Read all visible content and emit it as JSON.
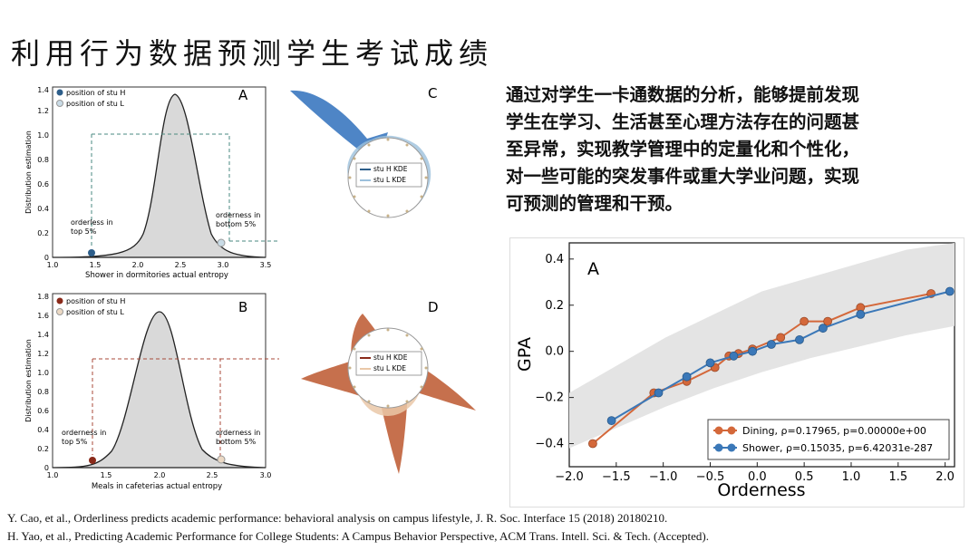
{
  "title": "利用行为数据预测学生考试成绩",
  "body_lines": [
    "通过对学生一卡通数据的分析，能够提前发现",
    "学生在学习、生活甚至心理方法存在的问题甚",
    "至异常，实现教学管理中的定量化和个性化，",
    "对一些可能的突发事件或重大学业问题，实现",
    "可预测的管理和干预。"
  ],
  "references": [
    "Y. Cao, et al., Orderliness predicts academic performance: behavioral analysis on campus lifestyle, J. R. Soc. Interface 15 (2018) 20180210.",
    "H. Yao, et al.,  Predicting Academic Performance for College Students: A Campus Behavior Perspective, ACM Trans. Intell. Sci. &  Tech. (Accepted)."
  ],
  "panel_a": {
    "letter": "A",
    "ylabel": "Distribution estimation",
    "xlabel": "Shower in dormitories actual entropy",
    "legend": [
      "position of stu H",
      "position of stu L"
    ],
    "annot_left": [
      "orderless in",
      "top 5%"
    ],
    "annot_right": [
      "orderness in",
      "bottom 5%"
    ],
    "xticks": [
      "1.0",
      "1.5",
      "2.0",
      "2.5",
      "3.0",
      "3.5"
    ],
    "yticks": [
      "0",
      "0.2",
      "0.4",
      "0.6",
      "0.8",
      "1.0",
      "1.2",
      "1.4"
    ]
  },
  "panel_b": {
    "letter": "B",
    "ylabel": "Distribution estimation",
    "xlabel": "Meals in cafeterias actual entropy",
    "legend": [
      "position of stu H",
      "position of stu L"
    ],
    "annot_left": [
      "orderness in",
      "top 5%"
    ],
    "annot_right": [
      "orderness in",
      "bottom 5%"
    ],
    "xticks": [
      "1.0",
      "1.5",
      "2.0",
      "2.5",
      "3.0"
    ],
    "yticks": [
      "0",
      "0.2",
      "0.4",
      "0.6",
      "0.8",
      "1.0",
      "1.2",
      "1.4",
      "1.6",
      "1.8"
    ]
  },
  "panel_c": {
    "letter": "C",
    "legend": [
      "stu H KDE",
      "stu L KDE"
    ]
  },
  "panel_d": {
    "letter": "D",
    "legend": [
      "stu H KDE",
      "stu L KDE"
    ]
  },
  "colors": {
    "dining": "#d4683a",
    "shower": "#3b78b8",
    "band": "#e4e4e4"
  },
  "chart_data": {
    "type": "line",
    "panel_letter": "A",
    "xlabel": "Orderness",
    "ylabel": "GPA",
    "xlim": [
      -2.0,
      2.1
    ],
    "ylim": [
      -0.5,
      0.47
    ],
    "xticks": [
      "−2.0",
      "−1.5",
      "−1.0",
      "−0.5",
      "0.0",
      "0.5",
      "1.0",
      "1.5",
      "2.0"
    ],
    "yticks": [
      "−0.4",
      "−0.2",
      "0.0",
      "0.2",
      "0.4"
    ],
    "series": [
      {
        "name": "Dining, ρ=0.17965, p=0.00000e+00",
        "x": [
          -1.75,
          -1.1,
          -0.75,
          -0.45,
          -0.3,
          -0.2,
          -0.05,
          0.25,
          0.5,
          0.75,
          1.1,
          1.85
        ],
        "y": [
          -0.4,
          -0.18,
          -0.13,
          -0.07,
          -0.02,
          -0.01,
          0.01,
          0.06,
          0.13,
          0.13,
          0.19,
          0.25
        ]
      },
      {
        "name": "Shower, ρ=0.15035, p=6.42031e-287",
        "x": [
          -1.55,
          -1.05,
          -0.75,
          -0.5,
          -0.25,
          -0.05,
          0.15,
          0.45,
          0.7,
          1.1,
          2.05
        ],
        "y": [
          -0.3,
          -0.18,
          -0.11,
          -0.05,
          -0.02,
          0.0,
          0.03,
          0.05,
          0.1,
          0.16,
          0.26
        ]
      }
    ],
    "band_upper": [
      -0.18,
      -0.06,
      0.06,
      0.16,
      0.26,
      0.32,
      0.38,
      0.44,
      0.47
    ],
    "band_lower": [
      -0.42,
      -0.33,
      -0.24,
      -0.16,
      -0.09,
      -0.03,
      0.02,
      0.07,
      0.11
    ]
  }
}
